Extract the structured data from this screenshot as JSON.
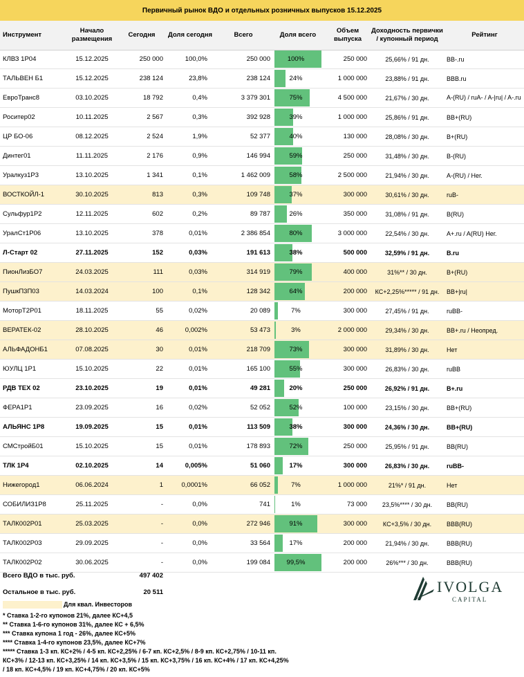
{
  "title": "Первичный рынок ВДО и отдельных розничных выпусков 15.12.2025",
  "headers": {
    "instrument": "Инструмент",
    "start": "Начало размещения",
    "today": "Сегодня",
    "share_today": "Доля сегодня",
    "total": "Всего",
    "share_total": "Доля всего",
    "volume": "Объем выпуска",
    "yield": "Доходность первички / купонный период",
    "rating": "Рейтинг"
  },
  "colors": {
    "title_bg": "#f6d55c",
    "highlight_bg": "#fdf1cc",
    "bar": "#62c17c"
  },
  "rows": [
    {
      "name": "КЛВЗ 1Р04",
      "start": "15.12.2025",
      "today": "250 000",
      "share_today": "100,0%",
      "total": "250 000",
      "pct": "100%",
      "fill": 1.0,
      "volume": "250 000",
      "yield": "25,66% / 91 дн.",
      "rating": "BB-.ru",
      "hl": false,
      "bold": false
    },
    {
      "name": "ТАЛЬВЕН Б1",
      "start": "15.12.2025",
      "today": "238 124",
      "share_today": "23,8%",
      "total": "238 124",
      "pct": "24%",
      "fill": 0.238,
      "volume": "1 000 000",
      "yield": "23,88% / 91 дн.",
      "rating": "BBB.ru",
      "hl": false,
      "bold": false
    },
    {
      "name": "ЕвроТранс8",
      "start": "03.10.2025",
      "today": "18 792",
      "share_today": "0,4%",
      "total": "3 379 301",
      "pct": "75%",
      "fill": 0.75,
      "volume": "4 500 000",
      "yield": "21,67% / 30 дн.",
      "rating": "A-(RU) / ruA- / A-|ru| / A-.ru",
      "hl": false,
      "bold": false
    },
    {
      "name": "Роситер02",
      "start": "10.11.2025",
      "today": "2 567",
      "share_today": "0,3%",
      "total": "392 928",
      "pct": "39%",
      "fill": 0.39,
      "volume": "1 000 000",
      "yield": "25,86% / 91 дн.",
      "rating": "BB+(RU)",
      "hl": false,
      "bold": false
    },
    {
      "name": "ЦР БО-06",
      "start": "08.12.2025",
      "today": "2 524",
      "share_today": "1,9%",
      "total": "52 377",
      "pct": "40%",
      "fill": 0.4,
      "volume": "130 000",
      "yield": "28,08% / 30 дн.",
      "rating": "B+(RU)",
      "hl": false,
      "bold": false
    },
    {
      "name": "Динтег01",
      "start": "11.11.2025",
      "today": "2 176",
      "share_today": "0,9%",
      "total": "146 994",
      "pct": "59%",
      "fill": 0.59,
      "volume": "250 000",
      "yield": "31,48% / 30 дн.",
      "rating": "B-(RU)",
      "hl": false,
      "bold": false
    },
    {
      "name": "Уралкуз1Р3",
      "start": "13.10.2025",
      "today": "1 341",
      "share_today": "0,1%",
      "total": "1 462 009",
      "pct": "58%",
      "fill": 0.58,
      "volume": "2 500 000",
      "yield": "21,94% / 30 дн.",
      "rating": "A-(RU) / Нег.",
      "hl": false,
      "bold": false
    },
    {
      "name": "ВОСТКОЙЛ-1",
      "start": "30.10.2025",
      "today": "813",
      "share_today": "0,3%",
      "total": "109 748",
      "pct": "37%",
      "fill": 0.37,
      "volume": "300 000",
      "yield": "30,61% / 30 дн.",
      "rating": "ruB-",
      "hl": true,
      "bold": false
    },
    {
      "name": "Сульфур1Р2",
      "start": "12.11.2025",
      "today": "602",
      "share_today": "0,2%",
      "total": "89 787",
      "pct": "26%",
      "fill": 0.26,
      "volume": "350 000",
      "yield": "31,08% / 91 дн.",
      "rating": "B(RU)",
      "hl": false,
      "bold": false
    },
    {
      "name": "УралСт1Р06",
      "start": "13.10.2025",
      "today": "378",
      "share_today": "0,01%",
      "total": "2 386 854",
      "pct": "80%",
      "fill": 0.8,
      "volume": "3 000 000",
      "yield": "22,54% / 30 дн.",
      "rating": "A+.ru / A(RU) Нег.",
      "hl": false,
      "bold": false
    },
    {
      "name": "Л-Старт 02",
      "start": "27.11.2025",
      "today": "152",
      "share_today": "0,03%",
      "total": "191 613",
      "pct": "38%",
      "fill": 0.38,
      "volume": "500 000",
      "yield": "32,59% / 91 дн.",
      "rating": "B.ru",
      "hl": false,
      "bold": true
    },
    {
      "name": "ПионЛизБО7",
      "start": "24.03.2025",
      "today": "111",
      "share_today": "0,03%",
      "total": "314 919",
      "pct": "79%",
      "fill": 0.79,
      "volume": "400 000",
      "yield": "31%** / 30 дн.",
      "rating": "B+(RU)",
      "hl": true,
      "bold": false
    },
    {
      "name": "ПушкП3П03",
      "start": "14.03.2024",
      "today": "100",
      "share_today": "0,1%",
      "total": "128 342",
      "pct": "64%",
      "fill": 0.64,
      "volume": "200 000",
      "yield": "КС+2,25%***** / 91 дн.",
      "rating": "BB+|ru|",
      "hl": true,
      "bold": false
    },
    {
      "name": "МоторТ2Р01",
      "start": "18.11.2025",
      "today": "55",
      "share_today": "0,02%",
      "total": "20 089",
      "pct": "7%",
      "fill": 0.07,
      "volume": "300 000",
      "yield": "27,45% / 91 дн.",
      "rating": "ruBB-",
      "hl": false,
      "bold": false
    },
    {
      "name": "ВЕРАТЕК-02",
      "start": "28.10.2025",
      "today": "46",
      "share_today": "0,002%",
      "total": "53 473",
      "pct": "3%",
      "fill": 0.03,
      "volume": "2 000 000",
      "yield": "29,34% / 30 дн.",
      "rating": "BB+.ru / Неопред.",
      "hl": true,
      "bold": false
    },
    {
      "name": "АЛЬФАДОНБ1",
      "start": "07.08.2025",
      "today": "30",
      "share_today": "0,01%",
      "total": "218 709",
      "pct": "73%",
      "fill": 0.73,
      "volume": "300 000",
      "yield": "31,89% / 30 дн.",
      "rating": "Нет",
      "hl": true,
      "bold": false
    },
    {
      "name": "ЮУЛЦ 1Р1",
      "start": "15.10.2025",
      "today": "22",
      "share_today": "0,01%",
      "total": "165 100",
      "pct": "55%",
      "fill": 0.55,
      "volume": "300 000",
      "yield": "26,83% / 30 дн.",
      "rating": "ruBB",
      "hl": false,
      "bold": false
    },
    {
      "name": "РДВ ТЕХ 02",
      "start": "23.10.2025",
      "today": "19",
      "share_today": "0,01%",
      "total": "49 281",
      "pct": "20%",
      "fill": 0.2,
      "volume": "250 000",
      "yield": "26,92% / 91 дн.",
      "rating": "B+.ru",
      "hl": false,
      "bold": true
    },
    {
      "name": "ФЕРА1Р1",
      "start": "23.09.2025",
      "today": "16",
      "share_today": "0,02%",
      "total": "52 052",
      "pct": "52%",
      "fill": 0.52,
      "volume": "100 000",
      "yield": "23,15% / 30 дн.",
      "rating": "BB+(RU)",
      "hl": false,
      "bold": false
    },
    {
      "name": "АЛЬЯНС 1Р8",
      "start": "19.09.2025",
      "today": "15",
      "share_today": "0,01%",
      "total": "113 509",
      "pct": "38%",
      "fill": 0.38,
      "volume": "300 000",
      "yield": "24,36% / 30 дн.",
      "rating": "BB+(RU)",
      "hl": false,
      "bold": true
    },
    {
      "name": "СМСтройБ01",
      "start": "15.10.2025",
      "today": "15",
      "share_today": "0,01%",
      "total": "178 893",
      "pct": "72%",
      "fill": 0.72,
      "volume": "250 000",
      "yield": "25,95% / 91 дн.",
      "rating": "BB(RU)",
      "hl": false,
      "bold": false
    },
    {
      "name": "ТЛК 1Р4",
      "start": "02.10.2025",
      "today": "14",
      "share_today": "0,005%",
      "total": "51 060",
      "pct": "17%",
      "fill": 0.17,
      "volume": "300 000",
      "yield": "26,83% / 30 дн.",
      "rating": "ruBB-",
      "hl": false,
      "bold": true
    },
    {
      "name": "Нижегород1",
      "start": "06.06.2024",
      "today": "1",
      "share_today": "0,0001%",
      "total": "66 052",
      "pct": "7%",
      "fill": 0.07,
      "volume": "1 000 000",
      "yield": "21%* / 91 дн.",
      "rating": "Нет",
      "hl": true,
      "bold": false
    },
    {
      "name": "СОБИЛИЗ1Р8",
      "start": "25.11.2025",
      "today": "-",
      "share_today": "0,0%",
      "total": "741",
      "pct": "1%",
      "fill": 0.01,
      "volume": "73 000",
      "yield": "23,5%**** / 30 дн.",
      "rating": "BB(RU)",
      "hl": false,
      "bold": false
    },
    {
      "name": "ТАЛК002Р01",
      "start": "25.03.2025",
      "today": "-",
      "share_today": "0,0%",
      "total": "272 946",
      "pct": "91%",
      "fill": 0.91,
      "volume": "300 000",
      "yield": "КС+3,5% / 30 дн.",
      "rating": "BBB(RU)",
      "hl": true,
      "bold": false
    },
    {
      "name": "ТАЛК002Р03",
      "start": "29.09.2025",
      "today": "-",
      "share_today": "0,0%",
      "total": "33 564",
      "pct": "17%",
      "fill": 0.17,
      "volume": "200 000",
      "yield": "21,94% / 30 дн.",
      "rating": "BBB(RU)",
      "hl": false,
      "bold": false
    },
    {
      "name": "ТАЛК002Р02",
      "start": "30.06.2025",
      "today": "-",
      "share_today": "0,0%",
      "total": "199 084",
      "pct": "99,5%",
      "fill": 0.995,
      "volume": "200 000",
      "yield": "26%*** / 30 дн.",
      "rating": "BBB(RU)",
      "hl": false,
      "bold": false
    }
  ],
  "summary": {
    "vdo_label": "Всего ВДО в тыс. руб.",
    "vdo_value": "497 402",
    "other_label": "Остальное в тыс. руб.",
    "other_value": "20 511"
  },
  "legend": {
    "qualified": "Для квал. Инвесторов"
  },
  "notes": [
    "* Ставка 1-2-го купонов 21%, далее КС+4,5",
    "** Ставка 1-6-го купонов 31%, далее КС + 6,5%",
    "*** Ставка купона 1 год - 26%, далее КС+5%",
    "**** Ставка 1-4-го купонов 23,5%, далее КС+7%",
    "***** Ставка 1-3 кп. КС+2% / 4-5 кп. КС+2,25% / 6-7 кп. КС+2,5% / 8-9 кп. КС+2,75% / 10-11 кп.",
    "КС+3% / 12-13 кп. КС+3,25% / 14 кп. КС+3,5% / 15 кп. КС+3,75% / 16 кп. КС+4% / 17 кп. КС+4,25%",
    "/ 18 кп. КС+4,5% / 19 кп. КС+4,75% / 20 кп. КС+5%"
  ],
  "logo": {
    "name": "IVOLGA",
    "sub": "CAPITAL"
  }
}
